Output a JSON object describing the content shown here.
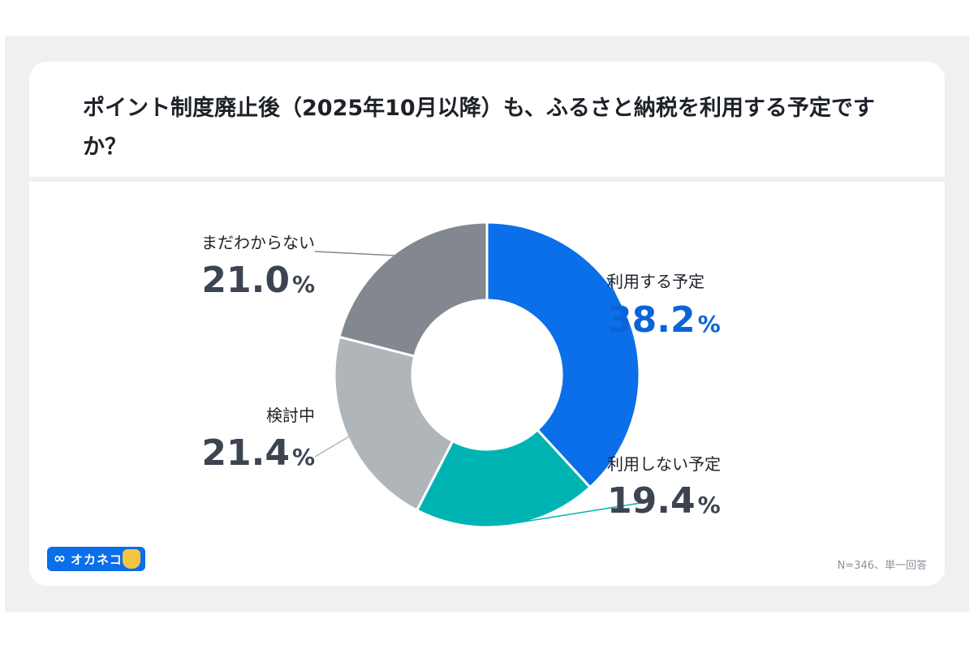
{
  "question": "ポイント制度廃止後（2025年10月以降）も、ふるさと納税を利用する予定ですか？",
  "note": "N=346、単一回答",
  "brand": {
    "name": "オカネコ",
    "icon": "infinity-icon"
  },
  "percent_sign": "%",
  "colors": {
    "primary": "#0a6fe8",
    "teal": "#00b3b3",
    "light_gray": "#b0b5ba",
    "gray": "#838890",
    "value_highlight": "#0a64d8",
    "value_default": "#3c4452"
  },
  "chart_data": {
    "type": "pie",
    "donut": true,
    "title": "ポイント制度廃止後（2025年10月以降）も、ふるさと納税を利用する予定ですか？",
    "categories": [
      "利用する予定",
      "利用しない予定",
      "検討中",
      "まだわからない"
    ],
    "values": [
      38.2,
      19.4,
      21.4,
      21.0
    ],
    "value_text": [
      "38.2",
      "19.4",
      "21.4",
      "21.0"
    ],
    "colors": [
      "#0a6fe8",
      "#00b3b3",
      "#b0b5ba",
      "#838890"
    ],
    "unit": "%",
    "start_angle": "12 o'clock",
    "direction": "clockwise",
    "legend": "none (direct labels)"
  }
}
